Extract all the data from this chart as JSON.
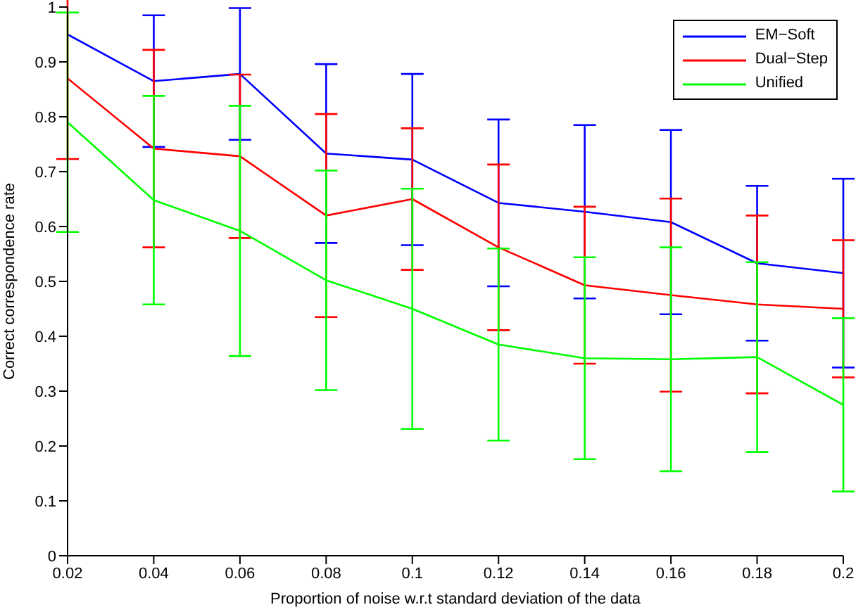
{
  "chart_data": {
    "type": "line",
    "xlabel": "Proportion of noise w.r.t standard deviation of the data",
    "ylabel": "Correct correspondence rate",
    "x": [
      0.02,
      0.04,
      0.06,
      0.08,
      0.1,
      0.12,
      0.14,
      0.16,
      0.18,
      0.2
    ],
    "series": [
      {
        "name": "EM−Soft",
        "color": "#0000ff",
        "values": [
          0.95,
          0.865,
          0.878,
          0.733,
          0.722,
          0.643,
          0.627,
          0.608,
          0.533,
          0.515
        ],
        "errors": [
          null,
          0.12,
          0.12,
          0.163,
          0.156,
          0.152,
          0.158,
          0.168,
          0.141,
          0.172
        ]
      },
      {
        "name": "Dual−Step",
        "color": "#ff0000",
        "values": [
          0.87,
          0.742,
          0.728,
          0.62,
          0.65,
          0.562,
          0.493,
          0.475,
          0.458,
          0.45
        ],
        "errors": [
          0.147,
          0.18,
          0.149,
          0.185,
          0.129,
          0.151,
          0.143,
          0.176,
          0.162,
          0.125
        ]
      },
      {
        "name": "Unified",
        "color": "#00ff00",
        "values": [
          0.79,
          0.648,
          0.592,
          0.502,
          0.45,
          0.385,
          0.36,
          0.358,
          0.362,
          0.275
        ],
        "errors": [
          0.2,
          0.19,
          0.228,
          0.2,
          0.219,
          0.175,
          0.184,
          0.204,
          0.173,
          0.158
        ]
      }
    ],
    "xlim": [
      0.02,
      0.2
    ],
    "xticks": [
      0.02,
      0.04,
      0.06,
      0.08,
      0.1,
      0.12,
      0.14,
      0.16,
      0.18,
      0.2
    ],
    "ylim": [
      0,
      1
    ],
    "yticks": [
      0,
      0.1,
      0.2,
      0.3,
      0.4,
      0.5,
      0.6,
      0.7,
      0.8,
      0.9,
      1
    ],
    "grid": false,
    "legend": "top right",
    "marker": "none",
    "line_style": "solid"
  }
}
